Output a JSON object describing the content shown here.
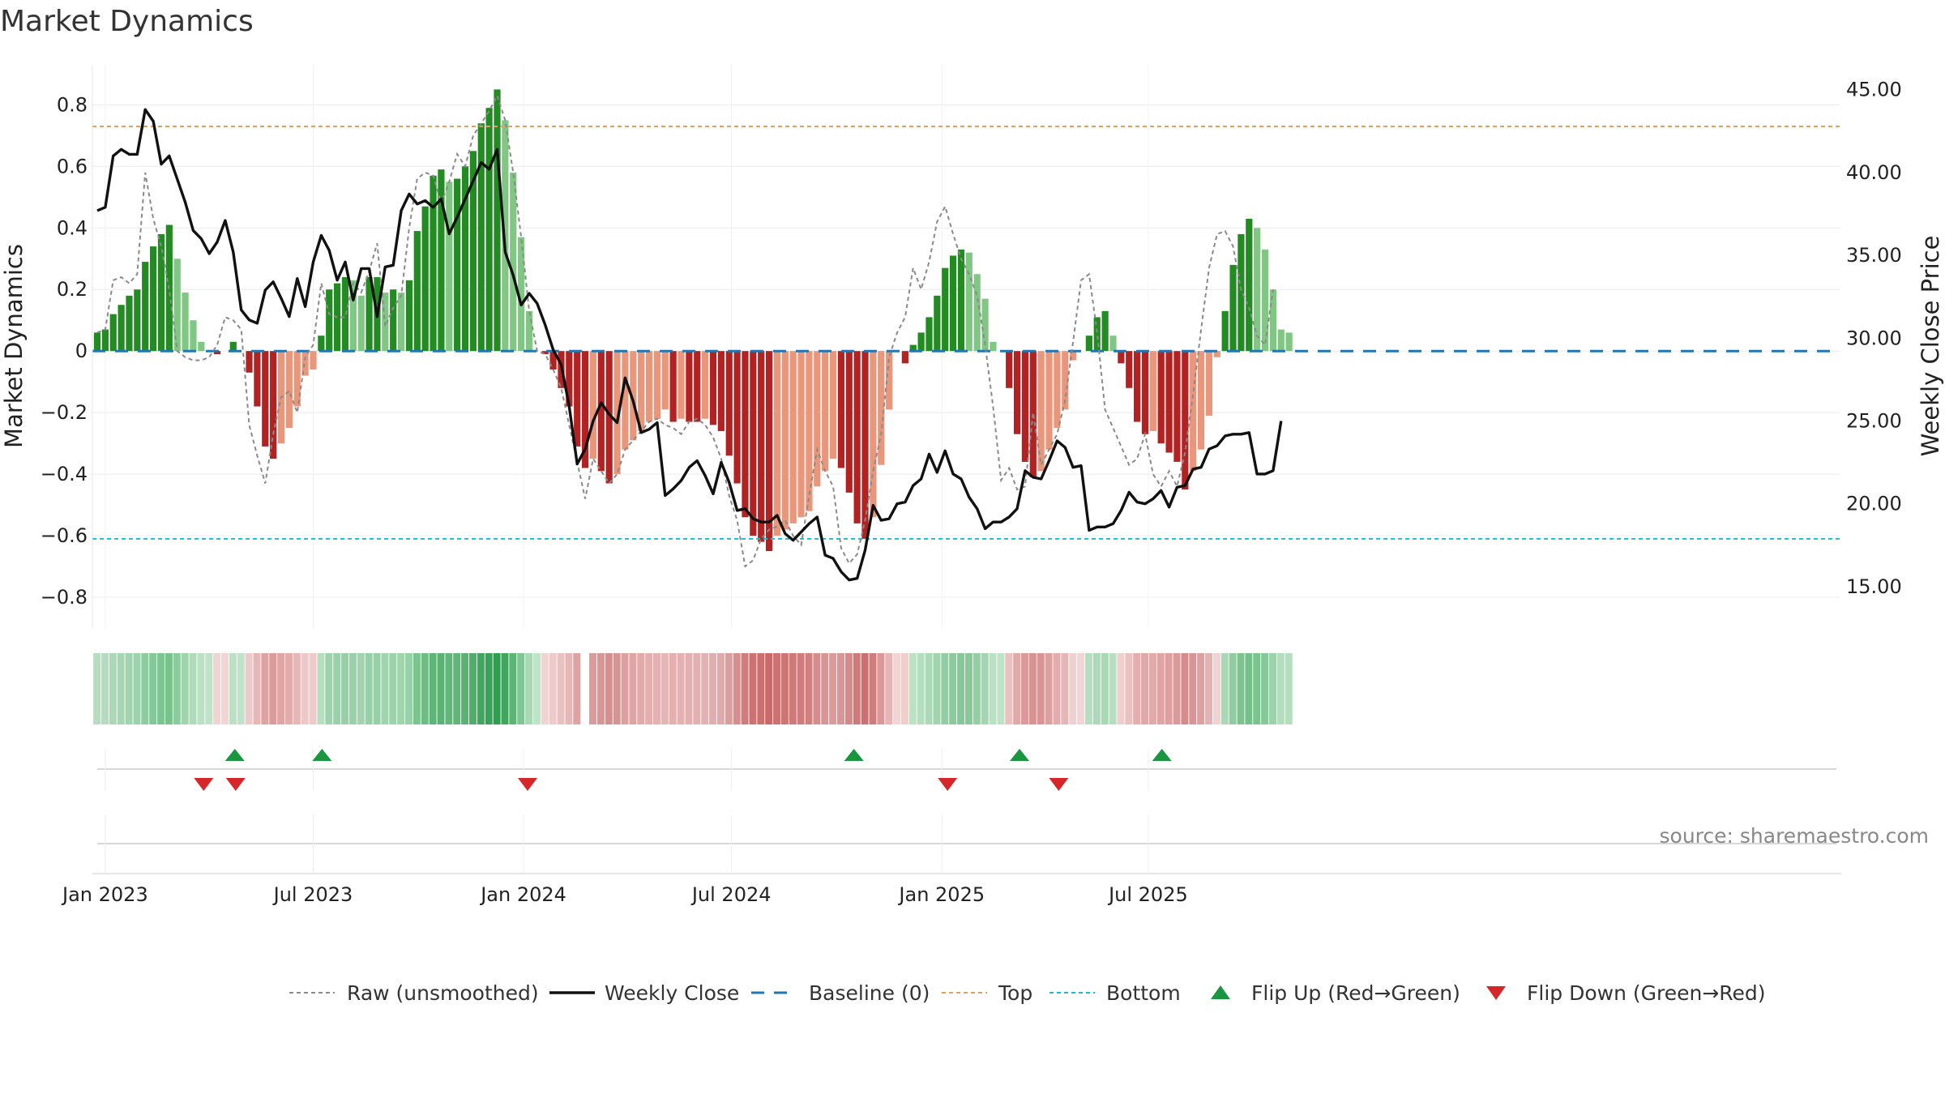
{
  "chart_data": {
    "type": "bar",
    "title": "Market Dynamics",
    "ylabel_left": "Market Dynamics",
    "ylabel_right": "Weekly Close Price",
    "ylim_left": [
      -0.9,
      0.93
    ],
    "ylim_right": [
      12.5,
      46.5
    ],
    "left_ticks": [
      0.8,
      0.6,
      0.4,
      0.2,
      0,
      -0.2,
      -0.4,
      -0.6,
      -0.8
    ],
    "left_tick_labels": [
      "0.8",
      "0.6",
      "0.4",
      "0.2",
      "0",
      "−0.2",
      "−0.4",
      "−0.6",
      "−0.8"
    ],
    "right_ticks": [
      45,
      40,
      35,
      30,
      25,
      20,
      15
    ],
    "right_tick_labels": [
      "45.00",
      "40.00",
      "35.00",
      "30.00",
      "25.00",
      "20.00",
      "15.00"
    ],
    "x_ticks": [
      {
        "label": "Jan 2023",
        "week": 1
      },
      {
        "label": "Jul 2023",
        "week": 27
      },
      {
        "label": "Jan 2024",
        "week": 53.3
      },
      {
        "label": "Jul 2024",
        "week": 79.3
      },
      {
        "label": "Jan 2025",
        "week": 105.6
      },
      {
        "label": "Jul 2025",
        "week": 131.4
      }
    ],
    "levels": {
      "top": 0.73,
      "bottom": -0.61,
      "baseline": 0
    },
    "grid": true,
    "legend_position": "bottom",
    "source": "source: sharemaestro.com",
    "series": [
      {
        "name": "Market Dynamics (smoothed)",
        "kind": "bar",
        "values": [
          0.06,
          0.07,
          0.12,
          0.15,
          0.18,
          0.2,
          0.29,
          0.34,
          0.38,
          0.41,
          0.3,
          0.19,
          0.1,
          0.03,
          0,
          -0.01,
          0,
          0.03,
          0,
          -0.07,
          -0.18,
          -0.31,
          -0.35,
          -0.3,
          -0.25,
          -0.18,
          -0.08,
          -0.06,
          0.05,
          0.2,
          0.22,
          0.24,
          0.23,
          0.18,
          0.24,
          0.24,
          0.19,
          0.2,
          0.19,
          0.23,
          0.39,
          0.47,
          0.57,
          0.59,
          0.55,
          0.56,
          0.6,
          0.65,
          0.74,
          0.79,
          0.85,
          0.75,
          0.58,
          0.37,
          0.13,
          0,
          -0.01,
          -0.06,
          -0.12,
          -0.18,
          -0.31,
          -0.38,
          -0.35,
          -0.39,
          -0.43,
          -0.4,
          -0.32,
          -0.29,
          -0.26,
          -0.23,
          -0.22,
          -0.19,
          -0.23,
          -0.22,
          -0.23,
          -0.23,
          -0.22,
          -0.24,
          -0.26,
          -0.34,
          -0.43,
          -0.54,
          -0.6,
          -0.62,
          -0.65,
          -0.6,
          -0.58,
          -0.56,
          -0.54,
          -0.52,
          -0.44,
          -0.39,
          -0.35,
          -0.38,
          -0.46,
          -0.56,
          -0.61,
          -0.54,
          -0.37,
          -0.19,
          0,
          -0.04,
          0.02,
          0.06,
          0.11,
          0.18,
          0.27,
          0.31,
          0.33,
          0.32,
          0.25,
          0.17,
          0.03,
          0,
          -0.12,
          -0.27,
          -0.36,
          -0.41,
          -0.39,
          -0.32,
          -0.25,
          -0.19,
          -0.03,
          0,
          0.05,
          0.11,
          0.13,
          0.05,
          -0.04,
          -0.12,
          -0.23,
          -0.27,
          -0.26,
          -0.3,
          -0.33,
          -0.36,
          -0.45,
          -0.39,
          -0.32,
          -0.21,
          -0.02,
          0.13,
          0.28,
          0.38,
          0.43,
          0.4,
          0.33,
          0.2,
          0.07,
          0.06
        ]
      },
      {
        "name": "Raw (unsmoothed)",
        "kind": "line",
        "values": [
          0.06,
          0.07,
          0.23,
          0.24,
          0.22,
          0.25,
          0.58,
          0.43,
          0.34,
          0.2,
          0.0,
          -0.02,
          -0.03,
          -0.03,
          -0.02,
          0.02,
          0.11,
          0.1,
          0.07,
          -0.24,
          -0.34,
          -0.43,
          -0.27,
          -0.15,
          -0.13,
          -0.2,
          -0.02,
          0.02,
          0.22,
          0.12,
          0.11,
          0.11,
          0.22,
          0.19,
          0.26,
          0.35,
          0.08,
          0.14,
          0.18,
          0.4,
          0.56,
          0.58,
          0.57,
          0.48,
          0.55,
          0.64,
          0.6,
          0.7,
          0.74,
          0.78,
          0.83,
          0.75,
          0.58,
          0.37,
          0.13,
          0,
          -0.01,
          -0.06,
          -0.12,
          -0.24,
          -0.36,
          -0.48,
          -0.35,
          -0.39,
          -0.43,
          -0.4,
          -0.32,
          -0.29,
          -0.26,
          -0.23,
          -0.22,
          -0.24,
          -0.25,
          -0.27,
          -0.23,
          -0.22,
          -0.24,
          -0.28,
          -0.35,
          -0.47,
          -0.55,
          -0.7,
          -0.68,
          -0.61,
          -0.58,
          -0.57,
          -0.55,
          -0.6,
          -0.63,
          -0.47,
          -0.32,
          -0.39,
          -0.44,
          -0.64,
          -0.69,
          -0.66,
          -0.55,
          -0.39,
          -0.27,
          -0.02,
          0.06,
          0.11,
          0.27,
          0.2,
          0.29,
          0.42,
          0.47,
          0.38,
          0.3,
          0.25,
          0.18,
          0.02,
          -0.18,
          -0.42,
          -0.38,
          -0.45,
          -0.44,
          -0.2,
          -0.37,
          -0.32,
          -0.27,
          -0.16,
          0.03,
          0.23,
          0.25,
          0.06,
          -0.19,
          -0.25,
          -0.31,
          -0.37,
          -0.35,
          -0.27,
          -0.4,
          -0.44,
          -0.39,
          -0.44,
          -0.33,
          -0.14,
          0.07,
          0.27,
          0.38,
          0.39,
          0.34,
          0.2,
          0.14,
          0.05,
          0.02,
          0.2
        ]
      },
      {
        "name": "Weekly Close",
        "kind": "line",
        "axis": "right",
        "values": [
          37.7,
          37.9,
          41.0,
          41.4,
          41.1,
          41.1,
          43.8,
          43.1,
          40.5,
          41.0,
          39.6,
          38.2,
          36.5,
          36.0,
          35.1,
          35.8,
          37.1,
          35.2,
          31.7,
          31.1,
          30.9,
          32.9,
          33.4,
          32.4,
          31.3,
          33.6,
          31.9,
          34.6,
          36.2,
          35.3,
          33.5,
          34.6,
          32.3,
          34.2,
          34.2,
          31.3,
          34.3,
          34.4,
          37.7,
          38.7,
          38.1,
          38.3,
          37.9,
          38.4,
          36.3,
          37.3,
          38.4,
          39.5,
          40.6,
          40.2,
          41.4,
          35.2,
          33.8,
          32.0,
          32.7,
          32.1,
          30.8,
          29.3,
          28.4,
          25.9,
          22.4,
          23.3,
          25.0,
          26.1,
          25.4,
          24.9,
          27.6,
          26.2,
          24.3,
          24.5,
          24.9,
          20.5,
          20.9,
          21.4,
          22.2,
          22.6,
          21.7,
          20.6,
          22.5,
          21.3,
          19.6,
          19.7,
          19.1,
          18.9,
          18.9,
          19.3,
          18.2,
          17.8,
          18.3,
          18.8,
          19.2,
          16.9,
          16.7,
          15.9,
          15.4,
          15.5,
          17.2,
          19.9,
          19.0,
          19.1,
          20.0,
          20.1,
          21.1,
          21.5,
          23.0,
          21.9,
          23.2,
          21.8,
          21.5,
          20.4,
          19.7,
          18.5,
          18.9,
          18.9,
          19.2,
          19.7,
          22.0,
          21.6,
          21.5,
          22.6,
          23.8,
          23.4,
          22.2,
          22.3,
          18.4,
          18.6,
          18.6,
          18.8,
          19.6,
          20.7,
          20.1,
          20.0,
          20.3,
          20.8,
          19.8,
          21.0,
          21.1,
          22.1,
          22.2,
          23.3,
          23.5,
          24.1,
          24.2,
          24.2,
          24.3,
          21.8,
          21.8,
          22.0,
          25.0
        ]
      }
    ],
    "color_strip": {
      "positive_dark": "#2e9e4f",
      "positive_light": "#bfe3c8",
      "negative_dark": "#c96a6a",
      "negative_light": "#f1d5d5",
      "gap_week": 61
    },
    "flip_up_weeks": [
      17.2,
      28.1,
      94.6,
      115.3,
      133.1
    ],
    "flip_down_weeks": [
      13.3,
      17.3,
      53.8,
      106.3,
      120.2
    ],
    "colors": {
      "rising_positive": "#228b22",
      "falling_positive": "#81c784",
      "falling_negative": "#b22222",
      "rising_negative": "#e9967a",
      "raw_line": "#8a8a8a",
      "close_line": "#111111",
      "baseline": "#1f77b4",
      "top": "#e0a060",
      "bottom": "#17becf",
      "flip_up": "#1a9641",
      "flip_down": "#d7262a"
    },
    "legend": [
      {
        "label": "Raw (unsmoothed)",
        "style": "raw"
      },
      {
        "label": "Weekly Close",
        "style": "close"
      },
      {
        "label": "Baseline (0)",
        "style": "baseline"
      },
      {
        "label": "Top",
        "style": "top"
      },
      {
        "label": "Bottom",
        "style": "bottom"
      },
      {
        "label": "Flip Up (Red→Green)",
        "style": "flip-up"
      },
      {
        "label": "Flip Down (Green→Red)",
        "style": "flip-down"
      }
    ]
  }
}
